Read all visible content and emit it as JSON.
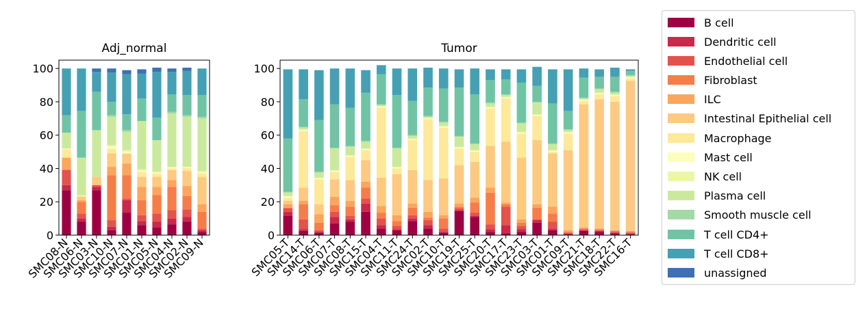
{
  "chart_data": [
    {
      "type": "bar",
      "stacked": true,
      "title": "Adj_normal",
      "xlabel": "",
      "ylabel": "",
      "ylim": [
        0,
        105
      ],
      "yticks": [
        0,
        20,
        40,
        60,
        80,
        100
      ],
      "grid": false,
      "categories": [
        "SMC08-N",
        "SMC06-N",
        "SMC03-N",
        "SMC10-N",
        "SMC07-N",
        "SMC01-N",
        "SMC05-N",
        "SMC04-N",
        "SMC02-N",
        "SMC09-N"
      ],
      "series": [
        {
          "name": "B cell",
          "values": [
            27,
            8,
            27,
            3,
            13.5,
            6,
            4.5,
            6.5,
            8,
            2
          ]
        },
        {
          "name": "Dendritic cell",
          "values": [
            3,
            2,
            2,
            2,
            7.5,
            2.5,
            3.5,
            3.5,
            3,
            1
          ]
        },
        {
          "name": "Endothelial cell",
          "values": [
            9,
            3,
            1,
            4,
            1,
            3.5,
            5,
            5,
            4.5,
            1
          ]
        },
        {
          "name": "Fibroblast",
          "values": [
            0.5,
            7,
            0,
            27,
            14,
            9,
            11,
            14,
            8,
            10
          ]
        },
        {
          "name": "ILC",
          "values": [
            7,
            1,
            0,
            5,
            7,
            8,
            5,
            4,
            6,
            4.5
          ]
        },
        {
          "name": "Intestinal Epithelial cell",
          "values": [
            0,
            2,
            5,
            8,
            6,
            6,
            6,
            6,
            9,
            16.5
          ]
        },
        {
          "name": "Macrophage",
          "values": [
            5,
            0.5,
            0,
            3,
            0,
            3,
            2,
            1,
            2,
            2
          ]
        },
        {
          "name": "Mast cell",
          "values": [
            0.5,
            0,
            0,
            1,
            1,
            0.5,
            0.5,
            0.5,
            0.5,
            0.5
          ]
        },
        {
          "name": "NK cell",
          "values": [
            0,
            0.5,
            0,
            1,
            1,
            1,
            0.5,
            0.5,
            0,
            1
          ]
        },
        {
          "name": "Plasma cell",
          "values": [
            9.5,
            22.5,
            28,
            17,
            11,
            29,
            19,
            32,
            30,
            31.5
          ]
        },
        {
          "name": "Smooth muscle cell",
          "values": [
            0,
            0,
            0,
            1,
            1,
            0,
            0,
            1,
            1,
            1
          ]
        },
        {
          "name": "T cell CD4+",
          "values": [
            10.5,
            28,
            23,
            8,
            9.5,
            13.5,
            13.5,
            10.5,
            12,
            13
          ]
        },
        {
          "name": "T cell CD8+",
          "values": [
            28,
            25.5,
            12,
            17.5,
            24,
            15,
            27.5,
            13.5,
            14.5,
            16
          ]
        },
        {
          "name": "unassigned",
          "values": [
            0,
            0,
            2,
            2.5,
            2.5,
            2.5,
            2.5,
            2,
            2,
            0
          ]
        }
      ]
    },
    {
      "type": "bar",
      "stacked": true,
      "title": "Tumor",
      "xlabel": "",
      "ylabel": "",
      "ylim": [
        0,
        105
      ],
      "yticks": [
        0,
        20,
        40,
        60,
        80,
        100
      ],
      "grid": false,
      "categories": [
        "SMC05-T",
        "SMC14-T",
        "SMC06-T",
        "SMC07-T",
        "SMC08-T",
        "SMC15-T",
        "SMC04-T",
        "SMC11-T",
        "SMC24-T",
        "SMC02-T",
        "SMC10-T",
        "SMC19-T",
        "SMC25-T",
        "SMC20-T",
        "SMC17-T",
        "SMC23-T",
        "SMC03-T",
        "SMC01-T",
        "SMC09-T",
        "SMC21-T",
        "SMC18-T",
        "SMC22-T",
        "SMC16-T"
      ],
      "series": [
        {
          "name": "B cell",
          "values": [
            11.5,
            2.5,
            1.5,
            7,
            8,
            14,
            4,
            3,
            8.5,
            4,
            1.5,
            14.5,
            11,
            2,
            1,
            2,
            7.5,
            3,
            0.5,
            2.5,
            2,
            1,
            0.5
          ]
        },
        {
          "name": "Dendritic cell",
          "values": [
            2.5,
            1,
            0.5,
            4,
            1.5,
            5,
            2,
            0.5,
            1.5,
            2,
            0.5,
            0.5,
            0.5,
            1.5,
            5,
            1.5,
            1.5,
            1,
            0.5,
            0.5,
            0.5,
            0.5,
            0.5
          ]
        },
        {
          "name": "Endothelial cell",
          "values": [
            2,
            6,
            1,
            3,
            2,
            3,
            4,
            2,
            2,
            3,
            2,
            1,
            2,
            3,
            11,
            2,
            0.5,
            4,
            0.5,
            0.5,
            0.5,
            0.5,
            0.5
          ]
        },
        {
          "name": "Fibroblast",
          "values": [
            0.5,
            9,
            4.5,
            4,
            5.5,
            6.5,
            3.5,
            3,
            4.5,
            1.5,
            6,
            1,
            6,
            19,
            1.5,
            2,
            7,
            5,
            0.5,
            0.5,
            0.5,
            0.5,
            0.5
          ]
        },
        {
          "name": "ILC",
          "values": [
            2,
            2,
            5,
            5,
            3.5,
            3.5,
            4,
            3.5,
            2.5,
            3.5,
            2,
            2,
            3,
            3,
            1,
            2,
            2,
            4,
            1,
            0.5,
            0.5,
            0.5,
            0.5
          ]
        },
        {
          "name": "Intestinal Epithelial cell",
          "values": [
            2,
            8,
            6,
            10.5,
            12.5,
            13,
            17,
            24.5,
            20,
            19,
            22,
            23,
            21.5,
            25,
            36.5,
            37,
            38.5,
            32,
            48,
            74,
            77.5,
            77,
            90
          ]
        },
        {
          "name": "Macrophage",
          "values": [
            2,
            34,
            15,
            4.5,
            14,
            6,
            42,
            3.5,
            18,
            36.5,
            30.5,
            10,
            6,
            22.5,
            26,
            14.5,
            14.5,
            1,
            10,
            2,
            3,
            3.5,
            1.5
          ]
        },
        {
          "name": "Mast cell",
          "values": [
            0.5,
            0.5,
            0.5,
            0.5,
            0.5,
            0.5,
            0.5,
            0.5,
            0.5,
            0.5,
            0.5,
            0.5,
            0.5,
            0.5,
            0.5,
            0.5,
            0.5,
            0.5,
            0.5,
            0.5,
            0.5,
            0.5,
            0.5
          ]
        },
        {
          "name": "NK cell",
          "values": [
            0.5,
            0.5,
            0.5,
            0.5,
            0.5,
            0.5,
            0.5,
            0.5,
            0.5,
            0.5,
            0.5,
            0.5,
            0.5,
            0.5,
            0.5,
            0.5,
            0.5,
            0.5,
            0.5,
            0.5,
            0.5,
            0.5,
            0.5
          ]
        },
        {
          "name": "Plasma cell",
          "values": [
            2,
            1,
            3,
            13,
            5,
            4,
            0.5,
            11,
            1.5,
            0.5,
            2,
            6,
            3.5,
            2,
            1,
            5,
            7,
            3.5,
            1,
            0.5,
            2,
            1,
            0.5
          ]
        },
        {
          "name": "Smooth muscle cell",
          "values": [
            0.5,
            0.5,
            0.5,
            0.5,
            0.5,
            0.5,
            0.5,
            0.5,
            0.5,
            0.5,
            0.5,
            0.5,
            0.5,
            0.5,
            0.5,
            0.5,
            0.5,
            0.5,
            0.5,
            0.5,
            0.5,
            0.5,
            0.5
          ]
        },
        {
          "name": "T cell CD4+",
          "values": [
            32,
            16.5,
            31,
            26,
            23,
            29,
            18,
            31.5,
            20.5,
            17,
            20,
            29,
            29.5,
            13.5,
            9,
            24,
            9.5,
            24,
            11,
            12,
            7,
            9,
            2.5
          ]
        },
        {
          "name": "T cell CD8+",
          "values": [
            41.5,
            18,
            30,
            21.5,
            23.5,
            13.5,
            5.5,
            16,
            19.5,
            12,
            12,
            11,
            15.5,
            6.5,
            6,
            8,
            11.5,
            20.5,
            25,
            5.5,
            4.5,
            5.5,
            1
          ]
        },
        {
          "name": "unassigned",
          "values": [
            0,
            0,
            0,
            0,
            0,
            0,
            0,
            0,
            0,
            0,
            0,
            0,
            0,
            0,
            0,
            0,
            0,
            0,
            0,
            0,
            0,
            0,
            0
          ]
        }
      ]
    }
  ],
  "legend": {
    "placement": "right",
    "items": [
      {
        "label": "B cell",
        "color": "#9e0142"
      },
      {
        "label": "Dendritic cell",
        "color": "#c9294b"
      },
      {
        "label": "Endothelial cell",
        "color": "#e4524c"
      },
      {
        "label": "Fibroblast",
        "color": "#f67d4a"
      },
      {
        "label": "ILC",
        "color": "#fca55d"
      },
      {
        "label": "Intestinal Epithelial cell",
        "color": "#fec980"
      },
      {
        "label": "Macrophage",
        "color": "#fee89a"
      },
      {
        "label": "Mast cell",
        "color": "#fdfebb"
      },
      {
        "label": "NK cell",
        "color": "#ebf7a7"
      },
      {
        "label": "Plasma cell",
        "color": "#cbe99d"
      },
      {
        "label": "Smooth muscle cell",
        "color": "#a3d9a4"
      },
      {
        "label": "T cell CD4+",
        "color": "#70c4a5"
      },
      {
        "label": "T cell CD8+",
        "color": "#46a0b4"
      },
      {
        "label": "unassigned",
        "color": "#3e70b3"
      }
    ]
  }
}
